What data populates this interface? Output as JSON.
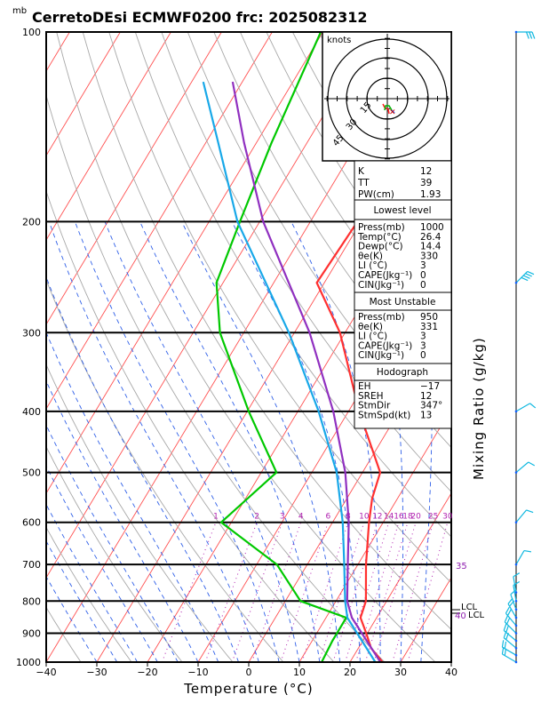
{
  "header": {
    "unit_mb": "mb",
    "title": "CerretoDEsi ECMWF0200  frc: 2025082312"
  },
  "axes": {
    "x_title": "Temperature (°C)",
    "right_title": "Mixing Ratio (g/kg)"
  },
  "hodograph": {
    "units": "knots",
    "ring_labels": [
      "15",
      "30",
      "45"
    ]
  },
  "indices": {
    "rows": [
      {
        "label": "K",
        "value": "12"
      },
      {
        "label": "TT",
        "value": "39"
      },
      {
        "label": "PW(cm)",
        "value": "1.93"
      }
    ]
  },
  "lowest_level": {
    "heading": "Lowest level",
    "rows": [
      {
        "label": "Press(mb)",
        "value": "1000"
      },
      {
        "label": "Temp(°C)",
        "value": "26.4"
      },
      {
        "label": "Dewp(°C)",
        "value": "14.4"
      },
      {
        "label": "θe(K)",
        "value": "330"
      },
      {
        "label": "LI (°C)",
        "value": "3"
      },
      {
        "label": "CAPE(Jkg⁻¹)",
        "value": "0"
      },
      {
        "label": "CIN(Jkg⁻¹)",
        "value": "0"
      }
    ]
  },
  "most_unstable": {
    "heading": "Most Unstable",
    "rows": [
      {
        "label": "Press(mb)",
        "value": "950"
      },
      {
        "label": "θe(K)",
        "value": "331"
      },
      {
        "label": "LI (°C)",
        "value": "3"
      },
      {
        "label": "CAPE(Jkg⁻¹)",
        "value": "3"
      },
      {
        "label": "CIN(Jkg⁻¹)",
        "value": "0"
      }
    ]
  },
  "hodo_params": {
    "heading": "Hodograph",
    "rows": [
      {
        "label": "EH",
        "value": "−17"
      },
      {
        "label": "SREH",
        "value": "12"
      },
      {
        "label": "StmDir",
        "value": "347°"
      },
      {
        "label": "StmSpd(kt)",
        "value": "13"
      }
    ]
  },
  "level_labels": {
    "lcl": "LCL",
    "lcl_pressure": "40",
    "mixing_35": "35"
  },
  "chart_data": {
    "type": "line",
    "title": "CerretoDEsi ECMWF0200  frc: 2025082312",
    "xlabel": "Temperature (°C)",
    "ylabel": "mb",
    "xlim": [
      -40,
      40
    ],
    "ylim": [
      1000,
      100
    ],
    "y_scale": "log",
    "x_ticks": [
      "−40",
      "−30",
      "−20",
      "−10",
      "0",
      "10",
      "20",
      "30",
      "40"
    ],
    "y_ticks": [
      "1000",
      "900",
      "800",
      "700",
      "600",
      "500",
      "400",
      "300",
      "200",
      "100"
    ],
    "mixing_ratio_labels": [
      "1",
      "2",
      "3",
      "4",
      "6",
      "8",
      "10",
      "12",
      "14",
      "16",
      "18",
      "20",
      "25",
      "30"
    ],
    "colors": {
      "temperature": "#ff3030",
      "dewpoint": "#00c800",
      "parcel": "#9030c0",
      "virtual_parcel": "#18a8e8",
      "isotherm": "#ff5050",
      "dry_adiabat": "#a8a8a8",
      "moist_adiabat": "#3060e8",
      "mixing_ratio": "#b020b0",
      "wind": "#10b8e0"
    },
    "series": [
      {
        "type": "temperature",
        "points": [
          [
            1000,
            26.4
          ],
          [
            950,
            22.5
          ],
          [
            900,
            19.8
          ],
          [
            850,
            16.8
          ],
          [
            800,
            15.9
          ],
          [
            700,
            11.6
          ],
          [
            600,
            7.2
          ],
          [
            550,
            5.0
          ],
          [
            500,
            3.5
          ],
          [
            400,
            -7.9
          ],
          [
            300,
            -21.0
          ],
          [
            250,
            -31.5
          ],
          [
            200,
            -30.7
          ],
          [
            150,
            -28.0
          ],
          [
            100,
            -28.8
          ]
        ]
      },
      {
        "type": "dewpoint",
        "points": [
          [
            1000,
            14.4
          ],
          [
            925,
            14.0
          ],
          [
            850,
            14.0
          ],
          [
            800,
            3.0
          ],
          [
            700,
            -6.0
          ],
          [
            600,
            -22.0
          ],
          [
            500,
            -17.0
          ],
          [
            400,
            -29.7
          ],
          [
            300,
            -44.7
          ],
          [
            250,
            -51.3
          ],
          [
            200,
            -53.9
          ],
          [
            150,
            -57.0
          ],
          [
            100,
            -60.4
          ]
        ]
      },
      {
        "type": "parcel",
        "points": [
          [
            1000,
            26.0
          ],
          [
            850,
            15.1
          ],
          [
            800,
            12.2
          ],
          [
            700,
            8.0
          ],
          [
            600,
            3.2
          ],
          [
            500,
            -3.4
          ],
          [
            400,
            -13.0
          ],
          [
            300,
            -27.0
          ],
          [
            200,
            -49.3
          ],
          [
            150,
            -62.4
          ],
          [
            120,
            -71.9
          ]
        ]
      },
      {
        "type": "virtual_parcel",
        "points": [
          [
            1000,
            25.0
          ],
          [
            850,
            14.2
          ],
          [
            800,
            11.8
          ],
          [
            700,
            7.3
          ],
          [
            600,
            2.0
          ],
          [
            500,
            -5.1
          ],
          [
            400,
            -15.9
          ],
          [
            300,
            -31.1
          ],
          [
            200,
            -54.4
          ],
          [
            150,
            -67.5
          ],
          [
            120,
            -77.7
          ]
        ]
      }
    ]
  }
}
